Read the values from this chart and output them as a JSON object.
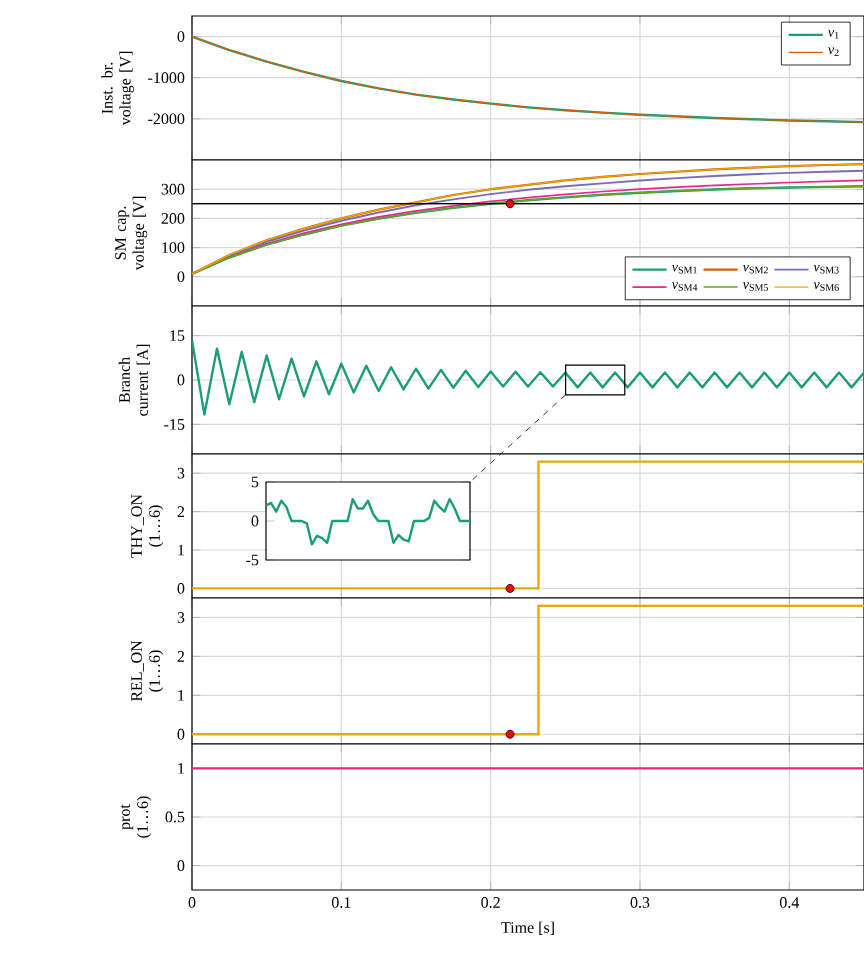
{
  "chart_data": [
    {
      "type": "line",
      "ylabel": "Inst. br. voltage [V]",
      "xlim": [
        0,
        0.45
      ],
      "ylim": [
        -3000,
        500
      ],
      "xticks": [
        0,
        0.1,
        0.2,
        0.3,
        0.4
      ],
      "yticks": [
        -2000,
        -1000,
        0
      ],
      "tick_labels": "y",
      "grid": true,
      "legend": "top right",
      "x": [
        0,
        0.025,
        0.05,
        0.075,
        0.1,
        0.125,
        0.15,
        0.175,
        0.2,
        0.225,
        0.25,
        0.275,
        0.3,
        0.325,
        0.35,
        0.375,
        0.4,
        0.425,
        0.45
      ],
      "series": [
        {
          "name": "*v*$_{1}$",
          "color": "#1b9e77",
          "values": [
            0,
            -330,
            -610,
            -860,
            -1080,
            -1260,
            -1410,
            -1530,
            -1630,
            -1720,
            -1790,
            -1850,
            -1900,
            -1940,
            -1980,
            -2010,
            -2040,
            -2060,
            -2080
          ]
        },
        {
          "name": "*v*$_{2}$",
          "color": "#d95f02",
          "values": [
            0,
            -330,
            -610,
            -860,
            -1080,
            -1260,
            -1410,
            -1530,
            -1630,
            -1720,
            -1790,
            -1850,
            -1900,
            -1940,
            -1980,
            -2010,
            -2040,
            -2060,
            -2080
          ]
        }
      ]
    },
    {
      "type": "line",
      "ylabel": "SM cap. voltage [V]",
      "xlim": [
        0,
        0.45
      ],
      "ylim": [
        -100,
        400
      ],
      "xticks": [
        0,
        0.1,
        0.2,
        0.3,
        0.4
      ],
      "yticks": [
        0,
        100,
        200,
        300
      ],
      "tick_labels": "y",
      "grid": true,
      "legend": "bottom right",
      "x": [
        0,
        0.025,
        0.05,
        0.075,
        0.1,
        0.125,
        0.15,
        0.175,
        0.2,
        0.225,
        0.25,
        0.275,
        0.3,
        0.325,
        0.35,
        0.375,
        0.4,
        0.425,
        0.45
      ],
      "ref_lines": [
        {
          "axis": "y",
          "value": 250,
          "color": "#000000"
        }
      ],
      "series": [
        {
          "name": "*v*$_{SM1}$",
          "color": "#1b9e77",
          "values": [
            10,
            66,
            110,
            145,
            175,
            199,
            219,
            236,
            250,
            262,
            272,
            281,
            288,
            294,
            299,
            303,
            306,
            308,
            310
          ]
        },
        {
          "name": "*v*$_{SM2}$",
          "color": "#d95f02",
          "values": [
            10,
            75,
            125,
            165,
            200,
            230,
            255,
            280,
            300,
            315,
            330,
            342,
            352,
            360,
            368,
            374,
            379,
            383,
            386
          ]
        },
        {
          "name": "*v*$_{SM3}$",
          "color": "#7570b3",
          "values": [
            10,
            72,
            120,
            158,
            192,
            220,
            245,
            265,
            283,
            298,
            310,
            320,
            330,
            338,
            345,
            351,
            356,
            360,
            363
          ]
        },
        {
          "name": "*v*$_{SM4}$",
          "color": "#e7298a",
          "values": [
            10,
            68,
            113,
            150,
            180,
            205,
            226,
            243,
            258,
            271,
            282,
            292,
            300,
            307,
            313,
            318,
            323,
            327,
            330
          ]
        },
        {
          "name": "*v*$_{SM5}$",
          "color": "#66a61e",
          "values": [
            10,
            66,
            110,
            145,
            175,
            199,
            219,
            236,
            250,
            262,
            272,
            281,
            288,
            294,
            299,
            303,
            306,
            308,
            310
          ]
        },
        {
          "name": "*v*$_{SM6}$",
          "color": "#e6ab02",
          "values": [
            10,
            75,
            125,
            165,
            200,
            230,
            255,
            280,
            300,
            315,
            330,
            342,
            352,
            360,
            368,
            374,
            379,
            383,
            386
          ]
        },
        {
          "type": "scatter",
          "color": "#ff0000",
          "x": [
            0.213
          ],
          "values": [
            250
          ]
        }
      ]
    },
    {
      "type": "line",
      "ylabel": "Branch current [A]",
      "xlim": [
        0,
        0.45
      ],
      "ylim": [
        -25,
        25
      ],
      "xticks": [
        0,
        0.1,
        0.2,
        0.3,
        0.4
      ],
      "yticks": [
        -15,
        0,
        15
      ],
      "tick_labels": "y",
      "grid": true,
      "x": [
        0,
        0.0083,
        0.0167,
        0.025,
        0.0333,
        0.0417,
        0.05,
        0.0583,
        0.0667,
        0.075,
        0.0833,
        0.0917,
        0.1,
        0.1083,
        0.1167,
        0.125,
        0.1333,
        0.1417,
        0.15,
        0.1583,
        0.1667,
        0.175,
        0.1833,
        0.1917,
        0.2,
        0.2083,
        0.2167,
        0.225,
        0.2333,
        0.2417,
        0.25,
        0.2583,
        0.2667,
        0.275,
        0.2833,
        0.2917,
        0.3,
        0.3083,
        0.3167,
        0.325,
        0.3333,
        0.3417,
        0.35,
        0.3583,
        0.3667,
        0.375,
        0.3833,
        0.3917,
        0.4,
        0.4083,
        0.4167,
        0.425,
        0.4333,
        0.4417,
        0.45
      ],
      "series": [
        {
          "color": "#1b9e77",
          "values": [
            13.4,
            -11.7,
            10.6,
            -8.2,
            9.5,
            -7.5,
            8.3,
            -6.5,
            7.2,
            -5.5,
            6.3,
            -4.8,
            5.5,
            -4.2,
            4.8,
            -3.7,
            4.3,
            -3.2,
            3.8,
            -2.9,
            3.4,
            -2.6,
            3.1,
            -2.4,
            2.9,
            -2.2,
            2.8,
            -2.2,
            2.6,
            -2.2,
            2.5,
            -2.5,
            2.5,
            -2.5,
            2.5,
            -2.5,
            2.5,
            -2.5,
            2.5,
            -2.5,
            2.5,
            -2.5,
            2.5,
            -2.5,
            2.5,
            -2.5,
            2.5,
            -2.5,
            2.5,
            -2.5,
            2.5,
            -2.5,
            2.5,
            -2.5,
            2.5
          ]
        }
      ]
    },
    {
      "type": "step",
      "ylabel": "THY_ON (1…6)",
      "xlim": [
        0,
        0.45
      ],
      "ylim": [
        -0.25,
        3.5
      ],
      "xticks": [
        0,
        0.1,
        0.2,
        0.3,
        0.4
      ],
      "yticks": [
        0,
        1,
        2,
        3
      ],
      "tick_labels": "y",
      "grid": true,
      "series": [
        {
          "color": "#e6ab02",
          "x": [
            0,
            0.232,
            0.45
          ],
          "values": [
            0,
            3.3,
            3.3
          ]
        },
        {
          "type": "scatter",
          "color": "#ff0000",
          "x": [
            0.213
          ],
          "values": [
            0
          ]
        }
      ]
    },
    {
      "type": "step",
      "ylabel": "REL_ON (1…6)",
      "xlim": [
        0,
        0.45
      ],
      "ylim": [
        -0.25,
        3.5
      ],
      "xticks": [
        0,
        0.1,
        0.2,
        0.3,
        0.4
      ],
      "yticks": [
        0,
        1,
        2,
        3
      ],
      "tick_labels": "y",
      "grid": true,
      "series": [
        {
          "color": "#e6ab02",
          "x": [
            0,
            0.232,
            0.45
          ],
          "values": [
            0,
            3.3,
            3.3
          ]
        },
        {
          "type": "scatter",
          "color": "#ff0000",
          "x": [
            0.213
          ],
          "values": [
            0
          ]
        }
      ]
    },
    {
      "type": "line",
      "ylabel": "prot (1…6)",
      "xlabel": "Time [s]",
      "xlim": [
        0,
        0.45
      ],
      "ylim": [
        -0.25,
        1.25
      ],
      "xticks": [
        0,
        0.1,
        0.2,
        0.3,
        0.4
      ],
      "yticks": [
        0,
        0.5,
        1
      ],
      "grid": true,
      "series": [
        {
          "color": "#e7298a",
          "x": [
            0,
            0.45
          ],
          "values": [
            1,
            1
          ]
        }
      ]
    },
    {
      "type": "line",
      "ylim": [
        -5,
        5
      ],
      "yticks": [
        -5,
        0,
        5
      ],
      "categories": [
        null,
        null,
        null,
        null,
        null,
        null,
        null,
        null,
        null,
        null,
        null,
        null,
        null,
        null,
        null,
        null,
        null,
        null,
        null,
        null,
        null,
        null,
        null,
        null,
        null,
        null,
        null,
        null,
        null,
        null,
        null,
        null,
        null,
        null,
        null,
        null,
        null,
        null,
        null,
        null,
        null
      ],
      "series": [
        {
          "color": "#1b9e77",
          "values": [
            2,
            2.3,
            1.2,
            2.6,
            1.8,
            0,
            0,
            0,
            -0.3,
            -3,
            -1.9,
            -2.2,
            -2.8,
            0,
            0,
            0,
            0,
            2.8,
            1.6,
            1.6,
            2.6,
            0.9,
            0,
            0,
            0,
            -2.8,
            -1.8,
            -2.4,
            -2.6,
            0,
            0,
            0,
            0.4,
            2.6,
            1.8,
            1.2,
            2.8,
            1.6,
            0,
            0,
            0
          ]
        }
      ]
    }
  ]
}
